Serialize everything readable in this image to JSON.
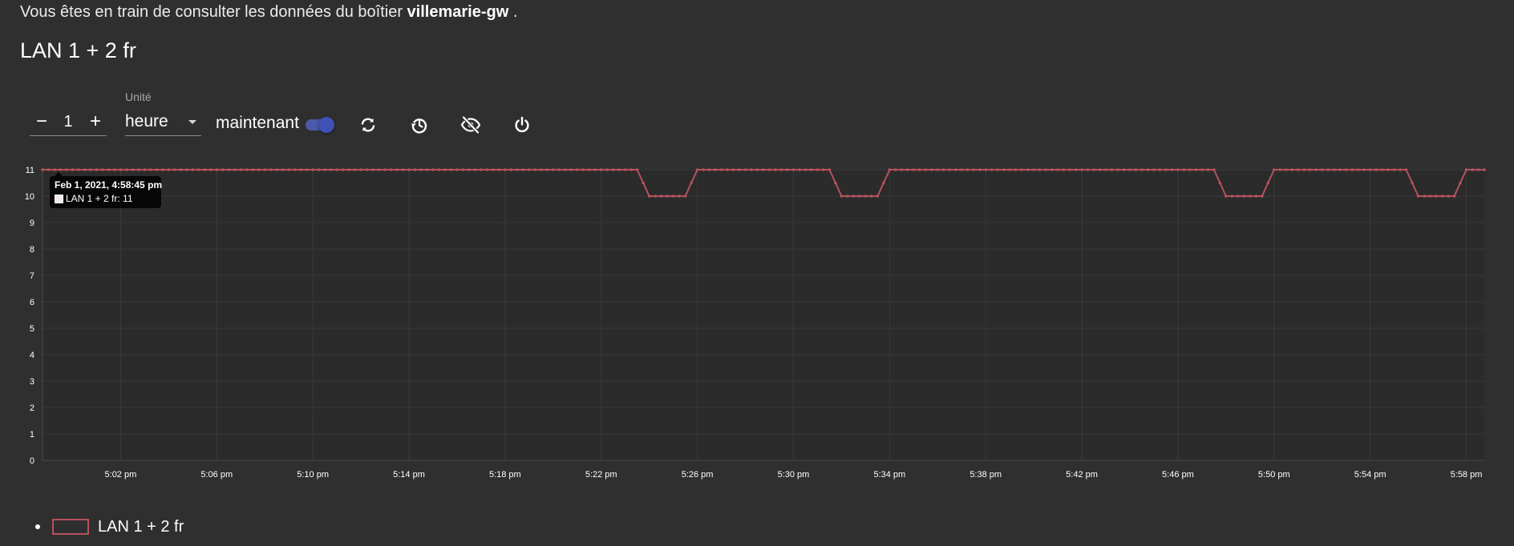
{
  "header": {
    "intro_prefix": "Vous êtes en train de consulter les données du boîtier ",
    "device_name": "villemarie-gw",
    "intro_suffix": " .",
    "title": "LAN 1 + 2 fr"
  },
  "controls": {
    "stepper": {
      "minus": "−",
      "value": "1",
      "plus": "+"
    },
    "unit_label": "Unité",
    "unit_value": "heure",
    "now_label": "maintenant",
    "now_toggle_on": true,
    "icons": [
      "refresh-icon",
      "history-icon",
      "eye-off-icon",
      "power-icon"
    ],
    "accent_color": "#3f51b5"
  },
  "tooltip": {
    "title": "Feb 1, 2021, 4:58:45 pm",
    "body": "LAN 1 + 2 fr: 11"
  },
  "legend": {
    "label": "LAN 1 + 2 fr",
    "color": "#b5525d"
  },
  "chart_data": {
    "type": "line",
    "x_start": "4:58:45 pm",
    "x_end": "5:58:45 pm",
    "xticks": [
      "5:02 pm",
      "5:06 pm",
      "5:10 pm",
      "5:14 pm",
      "5:18 pm",
      "5:22 pm",
      "5:26 pm",
      "5:30 pm",
      "5:34 pm",
      "5:38 pm",
      "5:42 pm",
      "5:46 pm",
      "5:50 pm",
      "5:54 pm",
      "5:58 pm"
    ],
    "yticks": [
      "0",
      "1",
      "2",
      "3",
      "4",
      "5",
      "6",
      "7",
      "8",
      "9",
      "10",
      "11"
    ],
    "ylim": [
      0,
      11
    ],
    "grid": true,
    "legend_position": "bottom-left",
    "series": [
      {
        "name": "LAN 1 + 2 fr",
        "color": "#b5525d",
        "points": [
          [
            "4:58:45 pm",
            11
          ],
          [
            "5:23:30 pm",
            11
          ],
          [
            "5:24:00 pm",
            10
          ],
          [
            "5:25:30 pm",
            10
          ],
          [
            "5:26:00 pm",
            11
          ],
          [
            "5:31:30 pm",
            11
          ],
          [
            "5:32:00 pm",
            10
          ],
          [
            "5:33:30 pm",
            10
          ],
          [
            "5:34:00 pm",
            11
          ],
          [
            "5:47:30 pm",
            11
          ],
          [
            "5:48:00 pm",
            10
          ],
          [
            "5:49:30 pm",
            10
          ],
          [
            "5:50:00 pm",
            11
          ],
          [
            "5:55:30 pm",
            11
          ],
          [
            "5:56:00 pm",
            10
          ],
          [
            "5:57:30 pm",
            10
          ],
          [
            "5:58:00 pm",
            11
          ],
          [
            "5:58:45 pm",
            11
          ]
        ]
      }
    ]
  }
}
